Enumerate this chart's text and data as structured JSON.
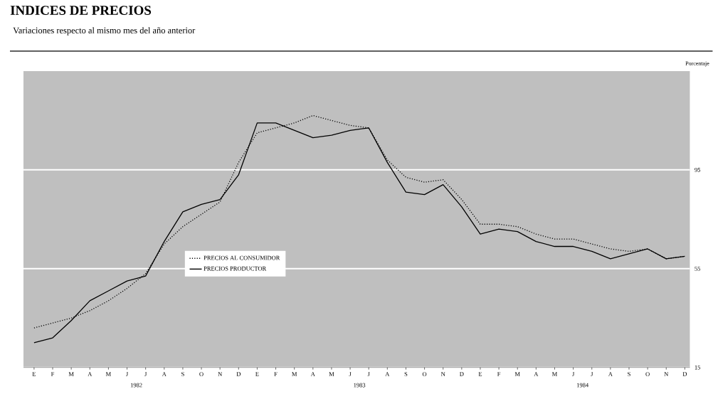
{
  "chart_data": {
    "type": "line",
    "title": "INDICES DE PRECIOS",
    "subtitle": "Variaciones respecto al mismo mes del año anterior",
    "ylabel": "Porcentaje",
    "categories": [
      "E",
      "F",
      "M",
      "A",
      "M",
      "J",
      "J",
      "A",
      "S",
      "O",
      "N",
      "D",
      "E",
      "F",
      "M",
      "A",
      "M",
      "J",
      "J",
      "A",
      "S",
      "O",
      "N",
      "D",
      "E",
      "F",
      "M",
      "A",
      "M",
      "J",
      "J",
      "A",
      "S",
      "O",
      "N",
      "D"
    ],
    "annotations": [
      "1982",
      "1983",
      "1984"
    ],
    "series": [
      {
        "name": "PRECIOS AL CONSUMIDOR",
        "color": "#000000",
        "line_style": "dotted",
        "values": [
          31,
          33,
          35,
          38,
          42,
          47,
          53,
          65,
          72,
          77,
          82,
          98,
          110,
          112,
          114,
          117,
          115,
          113,
          112,
          99,
          92,
          90,
          91,
          83,
          73,
          73,
          72,
          69,
          67,
          67,
          65,
          63,
          62,
          63,
          59,
          60
        ]
      },
      {
        "name": "PRECIOS PRODUCTOR",
        "color": "#000000",
        "line_style": "solid",
        "values": [
          25,
          27,
          34,
          42,
          46,
          50,
          52,
          66,
          78,
          81,
          83,
          93,
          114,
          114,
          111,
          108,
          109,
          111,
          112,
          98,
          86,
          85,
          89,
          80,
          69,
          71,
          70,
          66,
          64,
          64,
          62,
          59,
          61,
          63,
          59,
          60
        ]
      }
    ],
    "ylim": [
      15,
      135
    ],
    "yticks": [
      15,
      55,
      95
    ],
    "grid": "y",
    "legend": "left"
  }
}
